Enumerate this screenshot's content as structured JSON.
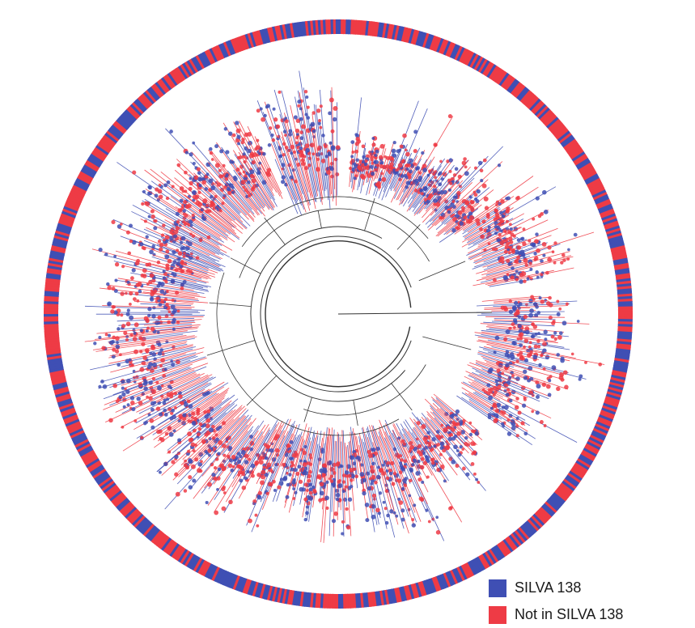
{
  "figure": {
    "type": "circular-phylogenetic-tree",
    "colors": {
      "in_silva": "#3f4fb4",
      "not_in_silva": "#ee3b45",
      "branch": "#333333"
    }
  },
  "legend": {
    "items": [
      {
        "label": "SILVA 138",
        "color": "#3f4fb4"
      },
      {
        "label": "Not in SILVA 138",
        "color": "#ee3b45"
      }
    ]
  }
}
